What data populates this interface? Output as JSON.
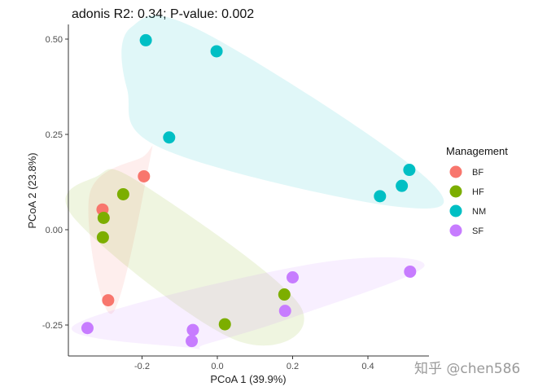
{
  "chart_data": {
    "type": "scatter",
    "title": "adonis R2: 0.34; P-value: 0.002",
    "xlabel": "PCoA 1 (39.9%)",
    "ylabel": "PCoA 2 (23.8%)",
    "xlim": [
      -0.38,
      0.56
    ],
    "ylim": [
      -0.33,
      0.54
    ],
    "x_ticks": [
      -0.2,
      0.0,
      0.2,
      0.4
    ],
    "x_tick_labels": [
      "-0.2",
      "0.0",
      "0.2",
      "0.4"
    ],
    "y_ticks": [
      0.5,
      0.25,
      0.0,
      -0.25
    ],
    "y_tick_labels": [
      "0.50",
      "0.25",
      "0.00",
      "-0.25"
    ],
    "grid": false,
    "legend_title": "Management",
    "legend_position": "right",
    "series": [
      {
        "name": "BF",
        "color": "#F8766D",
        "points": [
          {
            "x": -0.195,
            "y": 0.14
          },
          {
            "x": -0.305,
            "y": 0.053
          },
          {
            "x": -0.29,
            "y": -0.185
          }
        ]
      },
      {
        "name": "HF",
        "color": "#7CAE00",
        "points": [
          {
            "x": -0.25,
            "y": 0.093
          },
          {
            "x": -0.302,
            "y": 0.031
          },
          {
            "x": -0.304,
            "y": -0.02
          },
          {
            "x": 0.178,
            "y": -0.17
          },
          {
            "x": 0.02,
            "y": -0.248
          }
        ]
      },
      {
        "name": "NM",
        "color": "#00BFC4",
        "points": [
          {
            "x": -0.19,
            "y": 0.497
          },
          {
            "x": -0.002,
            "y": 0.468
          },
          {
            "x": -0.128,
            "y": 0.242
          },
          {
            "x": 0.51,
            "y": 0.157
          },
          {
            "x": 0.49,
            "y": 0.115
          },
          {
            "x": 0.432,
            "y": 0.088
          }
        ]
      },
      {
        "name": "SF",
        "color": "#C77CFF",
        "points": [
          {
            "x": 0.2,
            "y": -0.125
          },
          {
            "x": 0.512,
            "y": -0.11
          },
          {
            "x": 0.18,
            "y": -0.213
          },
          {
            "x": -0.345,
            "y": -0.258
          },
          {
            "x": -0.065,
            "y": -0.263
          },
          {
            "x": -0.068,
            "y": -0.292
          }
        ]
      }
    ],
    "hulls": [
      {
        "name": "BF",
        "color": "#F8766D",
        "opacity": 0.12,
        "points": [
          [
            -0.2,
            0.19
          ],
          [
            -0.18,
            0.18
          ],
          [
            -0.28,
            -0.22
          ],
          [
            -0.34,
            0.09
          ]
        ]
      },
      {
        "name": "HF",
        "color": "#7CAE00",
        "opacity": 0.12,
        "points": [
          [
            -0.32,
            0.14
          ],
          [
            -0.2,
            0.12
          ],
          [
            0.22,
            -0.2
          ],
          [
            0.05,
            -0.29
          ],
          [
            -0.38,
            0.03
          ]
        ]
      },
      {
        "name": "NM",
        "color": "#00BFC4",
        "opacity": 0.12,
        "points": [
          [
            -0.23,
            0.53
          ],
          [
            -0.04,
            0.52
          ],
          [
            0.55,
            0.14
          ],
          [
            0.48,
            0.06
          ],
          [
            -0.14,
            0.21
          ],
          [
            -0.24,
            0.37
          ]
        ]
      },
      {
        "name": "SF",
        "color": "#C77CFF",
        "opacity": 0.12,
        "points": [
          [
            -0.38,
            -0.25
          ],
          [
            0.25,
            -0.09
          ],
          [
            0.55,
            -0.095
          ],
          [
            0.2,
            -0.23
          ],
          [
            -0.03,
            -0.3
          ],
          [
            -0.07,
            -0.31
          ]
        ]
      }
    ]
  },
  "watermark": "知乎 @chen586"
}
